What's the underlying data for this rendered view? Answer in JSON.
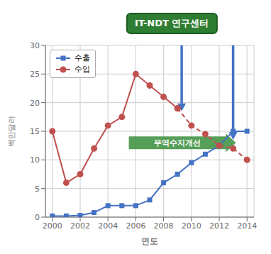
{
  "chart_data": {
    "type": "line",
    "x": [
      2000,
      2001,
      2002,
      2003,
      2004,
      2005,
      2006,
      2007,
      2008,
      2009,
      2010,
      2011,
      2012,
      2013,
      2014
    ],
    "series": [
      {
        "name": "수출",
        "color": "#4472C4",
        "marker": "square",
        "line_style": "solid",
        "values": [
          0.2,
          0.2,
          0.3,
          0.8,
          2.0,
          2.0,
          2.0,
          3.0,
          6.0,
          7.5,
          9.5,
          11.0,
          12.5,
          15.0,
          15.0
        ]
      },
      {
        "name": "수입",
        "color": "#C0504D",
        "marker": "circle",
        "line_style": "solid",
        "dashed_from": 2009,
        "values": [
          15.0,
          6.0,
          7.5,
          12.0,
          16.0,
          17.5,
          25.0,
          23.0,
          21.0,
          19.0,
          16.0,
          14.5,
          12.5,
          12.0,
          10.0
        ]
      }
    ],
    "xlabel": "연도",
    "ylabel": "백만달러",
    "xlim": [
      1999.5,
      2014.5
    ],
    "ylim": [
      0,
      30
    ],
    "xticks": [
      2000,
      2002,
      2004,
      2006,
      2008,
      2010,
      2012,
      2014
    ],
    "yticks": [
      0,
      5,
      10,
      15,
      20,
      25,
      30
    ],
    "grid": true,
    "legend": "upper left",
    "annotations": [
      {
        "text": "IT-NDT 연구센터",
        "color": "#2E7D32"
      },
      {
        "text": "무역수지개선",
        "color": "#388E3C",
        "x_start": 2005.5,
        "x_end": 2013.2,
        "y": 13.0
      }
    ],
    "arrows": [
      {
        "x": 2009.3,
        "y_start": 30,
        "y_end": 18.5,
        "color": "#4472C4"
      },
      {
        "x": 2013.0,
        "y_start": 30,
        "y_end": 13.5,
        "color": "#4472C4"
      }
    ]
  }
}
